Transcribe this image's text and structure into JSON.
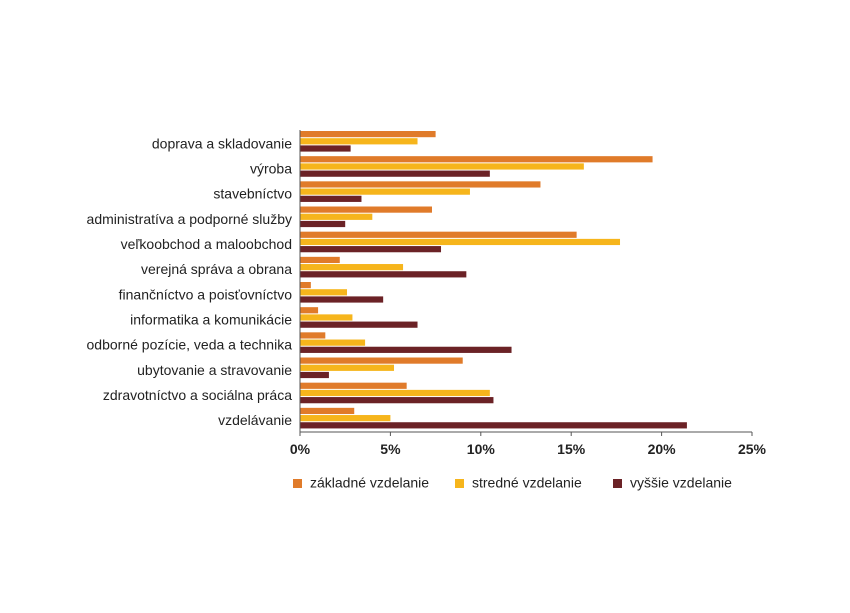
{
  "chart_data": {
    "type": "bar",
    "orientation": "horizontal",
    "categories": [
      "doprava a skladovanie",
      "výroba",
      "stavebníctvo",
      "administratíva a podporné služby",
      "veľkoobchod a maloobchod",
      "verejná správa a obrana",
      "finančníctvo a poisťovníctvo",
      "informatika a komunikácie",
      "odborné pozície, veda a technika",
      "ubytovanie a stravovanie",
      "zdravotníctvo a sociálna práca",
      "vzdelávanie"
    ],
    "series": [
      {
        "name": "základné vzdelanie",
        "color": "#e07b2a",
        "values": [
          7.5,
          19.5,
          13.3,
          7.3,
          15.3,
          2.2,
          0.6,
          1.0,
          1.4,
          9.0,
          5.9,
          3.0
        ]
      },
      {
        "name": "stredné vzdelanie",
        "color": "#f6b51c",
        "values": [
          6.5,
          15.7,
          9.4,
          4.0,
          17.7,
          5.7,
          2.6,
          2.9,
          3.6,
          5.2,
          10.5,
          5.0
        ]
      },
      {
        "name": "vyššie vzdelanie",
        "color": "#6b2226",
        "values": [
          2.8,
          10.5,
          3.4,
          2.5,
          7.8,
          9.2,
          4.6,
          6.5,
          11.7,
          1.6,
          10.7,
          21.4
        ]
      }
    ],
    "xlim": [
      0,
      25
    ],
    "xticks": [
      "0%",
      "5%",
      "10%",
      "15%",
      "20%",
      "25%"
    ],
    "xtick_values": [
      0,
      5,
      10,
      15,
      20,
      25
    ],
    "grid": false,
    "legend_position": "bottom"
  }
}
